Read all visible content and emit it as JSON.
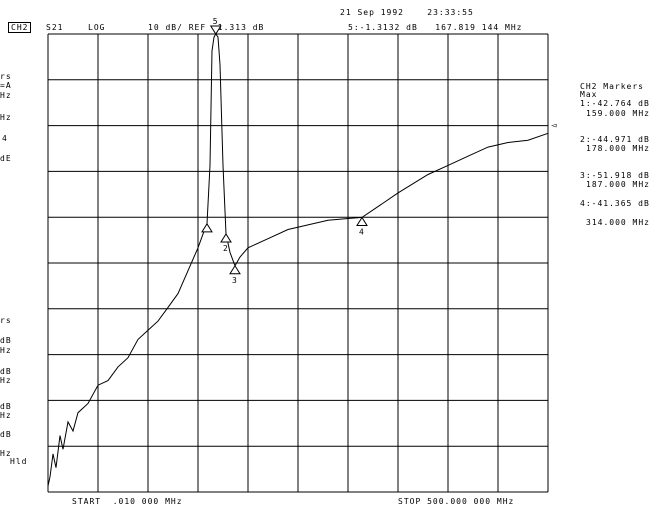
{
  "header": {
    "datetime": "21 Sep 1992    23:33:55",
    "channel": "CH2",
    "parameter": "S21",
    "format": "LOG",
    "scale": "10 dB/ REF -1.313 dB",
    "active_marker": "5:-1.3132 dB   167.819 144 MHz"
  },
  "footer": {
    "start": "START  .010 000 MHz",
    "stop": "STOP 500.000 000 MHz"
  },
  "right_panel": {
    "title": "CH2 Markers",
    "mode": "Max",
    "markers": [
      {
        "line1": "1:-42.764 dB",
        "line2": "159.000 MHz"
      },
      {
        "line1": "2:-44.971 dB",
        "line2": "178.000 MHz"
      },
      {
        "line1": "3:-51.918 dB",
        "line2": "187.000 MHz"
      },
      {
        "line1": "4:-41.365 dB",
        "line2": "314.000 MHz"
      }
    ]
  },
  "left_fragments": [
    "rs",
    "=A",
    "Hz",
    "Hz",
    "4",
    "dE",
    "rs",
    "dB",
    "Hz",
    "dB",
    "Hz",
    "dB",
    "Hz",
    "dB",
    "Hz",
    "Hld"
  ],
  "marker_labels": [
    "5",
    "2",
    "3",
    "4"
  ],
  "ref_arrow": "◅",
  "chart_data": {
    "type": "line",
    "title": "",
    "xlabel": "",
    "ylabel": "",
    "xlim": [
      0.01,
      500
    ],
    "ylim": [
      -101.313,
      -1.313
    ],
    "grid": true,
    "series": [
      {
        "x": [
          0.01,
          2,
          5,
          8,
          12,
          15,
          20,
          25,
          30,
          40,
          50,
          60,
          70,
          80,
          90,
          100,
          110,
          120,
          130,
          140,
          150,
          155,
          159,
          162,
          164,
          166,
          167.8,
          170,
          172,
          175,
          178,
          182,
          187,
          192,
          200,
          220,
          240,
          260,
          280,
          300,
          314,
          330,
          350,
          380,
          400,
          420,
          440,
          460,
          480,
          500
        ],
        "y": [
          -100,
          -98,
          -93,
          -96,
          -89,
          -92,
          -86,
          -88,
          -84,
          -82,
          -78,
          -77,
          -74,
          -72,
          -68,
          -66,
          -64,
          -61,
          -58,
          -53,
          -48,
          -45,
          -42.764,
          -30,
          -5,
          -2,
          -1.313,
          -2,
          -8,
          -30,
          -44.971,
          -49,
          -51.918,
          -50,
          -48,
          -46,
          -44,
          -43,
          -42,
          -41.6,
          -41.365,
          -39,
          -36,
          -32,
          -30,
          -28,
          -26,
          -25,
          -24.5,
          -23
        ]
      }
    ],
    "markers": [
      {
        "label": "5",
        "x": 167.8,
        "y": -1.313,
        "shape": "down"
      },
      {
        "label": "1",
        "x": 159,
        "y": -42.764,
        "shape": "up"
      },
      {
        "label": "2",
        "x": 178,
        "y": -44.971,
        "shape": "up"
      },
      {
        "label": "3",
        "x": 187,
        "y": -51.918,
        "shape": "up"
      },
      {
        "label": "4",
        "x": 314,
        "y": -41.365,
        "shape": "up"
      }
    ]
  }
}
